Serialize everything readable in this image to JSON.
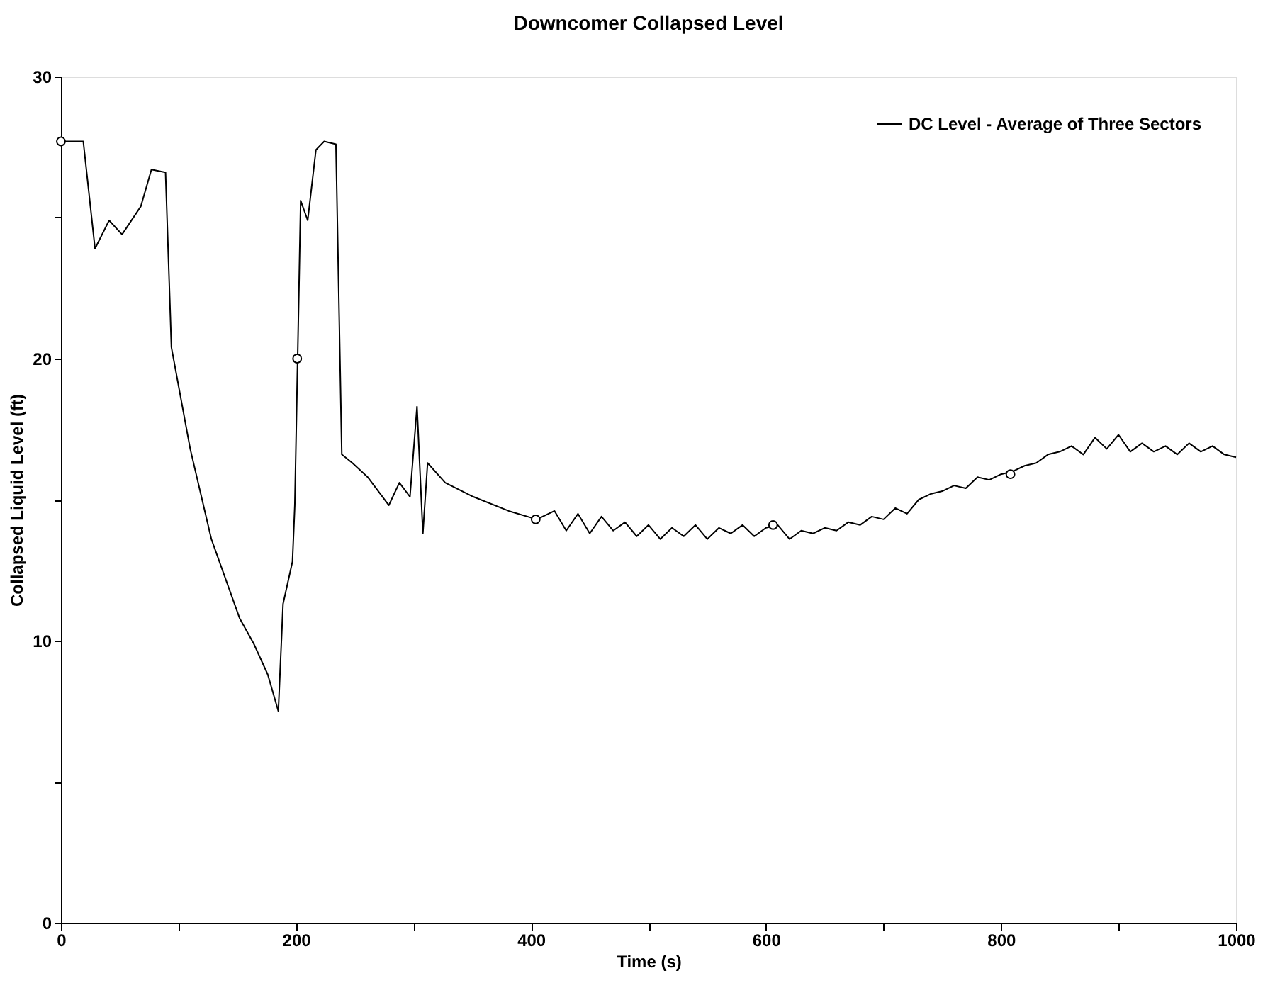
{
  "chart_data": {
    "type": "line",
    "title": "Downcomer Collapsed Level",
    "xlabel": "Time (s)",
    "ylabel": "Collapsed Liquid Level (ft)",
    "xlim": [
      0,
      1000
    ],
    "ylim": [
      0,
      30
    ],
    "xticks": [
      0,
      {
        "value": 100,
        "label": null
      },
      200,
      {
        "value": 300,
        "label": null
      },
      400,
      {
        "value": 500,
        "label": null
      },
      600,
      {
        "value": 700,
        "label": null
      },
      800,
      {
        "value": 900,
        "label": null
      },
      1000
    ],
    "yticks": [
      0,
      {
        "value": 5,
        "label": null
      },
      10,
      {
        "value": 15,
        "label": null
      },
      20,
      {
        "value": 25,
        "label": null
      },
      30
    ],
    "grid": false,
    "legend": "top right",
    "line_style": "solid",
    "series": [
      {
        "name": "DC Level - Average of Three Sectors",
        "marker": "none",
        "color": "#000000",
        "x": [
          0,
          19,
          29,
          41,
          52,
          68,
          77,
          89,
          94,
          110,
          128,
          152,
          164,
          176,
          185,
          189,
          197,
          199,
          204,
          210,
          217,
          224,
          234,
          239,
          248,
          261,
          279,
          288,
          297,
          303,
          308,
          312,
          327,
          351,
          381,
          405,
          420,
          430,
          440,
          450,
          460,
          470,
          480,
          490,
          500,
          510,
          520,
          530,
          540,
          550,
          560,
          570,
          580,
          590,
          600,
          610,
          620,
          630,
          640,
          650,
          660,
          670,
          680,
          690,
          700,
          710,
          720,
          730,
          740,
          750,
          760,
          770,
          780,
          790,
          800,
          810,
          820,
          830,
          840,
          850,
          860,
          870,
          880,
          890,
          900,
          910,
          920,
          930,
          940,
          950,
          960,
          970,
          980,
          990,
          1000
        ],
        "values": [
          27.7,
          27.7,
          23.9,
          24.9,
          24.4,
          25.4,
          26.7,
          26.6,
          20.4,
          16.8,
          13.6,
          10.8,
          9.9,
          8.8,
          7.5,
          11.3,
          12.8,
          14.8,
          25.6,
          24.9,
          27.4,
          27.7,
          27.6,
          16.6,
          16.3,
          15.8,
          14.8,
          15.6,
          15.1,
          18.3,
          13.8,
          16.3,
          15.6,
          15.1,
          14.6,
          14.3,
          14.6,
          13.9,
          14.5,
          13.8,
          14.4,
          13.9,
          14.2,
          13.7,
          14.1,
          13.6,
          14.0,
          13.7,
          14.1,
          13.6,
          14.0,
          13.8,
          14.1,
          13.7,
          14.0,
          14.1,
          13.6,
          13.9,
          13.8,
          14.0,
          13.9,
          14.2,
          14.1,
          14.4,
          14.3,
          14.7,
          14.5,
          15.0,
          15.2,
          15.3,
          15.5,
          15.4,
          15.8,
          15.7,
          15.9,
          16.0,
          16.2,
          16.3,
          16.6,
          16.7,
          16.9,
          16.6,
          17.2,
          16.8,
          17.3,
          16.7,
          17.0,
          16.7,
          16.9,
          16.6,
          17.0,
          16.7,
          16.9,
          16.6,
          16.5
        ]
      },
      {
        "type": "scatter",
        "marker": "circle",
        "color": "#000000",
        "x": [
          0,
          201,
          404,
          606,
          808
        ],
        "values": [
          27.7,
          20.0,
          14.3,
          14.1,
          15.9
        ]
      }
    ]
  }
}
